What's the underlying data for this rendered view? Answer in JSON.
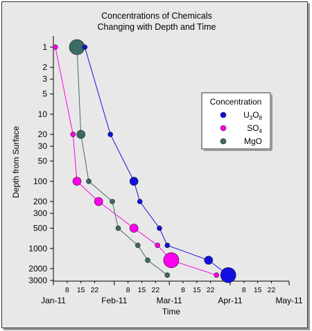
{
  "chart_data": {
    "type": "scatter",
    "title": [
      "Concentrations of Chemicals",
      "Changing with Depth and Time"
    ],
    "xlabel": "Time",
    "ylabel": "Depth from Surface",
    "x_major_ticks": [
      {
        "date": "2011-01-01",
        "label": "Jan-11"
      },
      {
        "date": "2011-02-01",
        "label": "Feb-11"
      },
      {
        "date": "2011-03-01",
        "label": "Mar-11"
      },
      {
        "date": "2011-04-01",
        "label": "Apr-11"
      },
      {
        "date": "2011-05-01",
        "label": "May-11"
      }
    ],
    "x_minor_ticks": [
      {
        "date": "2011-01-08",
        "label": "8"
      },
      {
        "date": "2011-01-15",
        "label": "15"
      },
      {
        "date": "2011-01-22",
        "label": "22"
      },
      {
        "date": "2011-02-08",
        "label": "8"
      },
      {
        "date": "2011-02-15",
        "label": "15"
      },
      {
        "date": "2011-02-22",
        "label": "22"
      },
      {
        "date": "2011-03-08",
        "label": "8"
      },
      {
        "date": "2011-03-15",
        "label": "15"
      },
      {
        "date": "2011-03-22",
        "label": "22"
      },
      {
        "date": "2011-04-08",
        "label": "8"
      },
      {
        "date": "2011-04-15",
        "label": "15"
      },
      {
        "date": "2011-04-22",
        "label": "22"
      }
    ],
    "y_scale": "log",
    "y_inverted": true,
    "ylim": [
      1,
      3000
    ],
    "y_ticks": [
      1,
      2,
      3,
      5,
      10,
      20,
      30,
      50,
      100,
      200,
      300,
      500,
      1000,
      2000,
      3000
    ],
    "grid": false,
    "legend": {
      "title": "Concentration",
      "placement": "right"
    },
    "series": [
      {
        "name": "U3O8",
        "label_main": "U",
        "label_sub1": "3",
        "label_mid": "O",
        "label_sub2": "8",
        "color": "#1010e0",
        "points": [
          {
            "x": "2011-01-17",
            "y": 1,
            "size": 1
          },
          {
            "x": "2011-01-30",
            "y": 20,
            "size": 1
          },
          {
            "x": "2011-02-11",
            "y": 100,
            "size": 2
          },
          {
            "x": "2011-02-14",
            "y": 200,
            "size": 1
          },
          {
            "x": "2011-02-24",
            "y": 500,
            "size": 1
          },
          {
            "x": "2011-02-28",
            "y": 900,
            "size": 1
          },
          {
            "x": "2011-03-21",
            "y": 1500,
            "size": 2
          },
          {
            "x": "2011-03-31",
            "y": 2500,
            "size": 3
          }
        ]
      },
      {
        "name": "SO4",
        "label_main": "SO",
        "label_sub1": "4",
        "color": "#ff00ee",
        "points": [
          {
            "x": "2011-01-02",
            "y": 1,
            "size": 1
          },
          {
            "x": "2011-01-11",
            "y": 20,
            "size": 1
          },
          {
            "x": "2011-01-13",
            "y": 100,
            "size": 2
          },
          {
            "x": "2011-01-24",
            "y": 200,
            "size": 2
          },
          {
            "x": "2011-02-11",
            "y": 500,
            "size": 2
          },
          {
            "x": "2011-02-23",
            "y": 900,
            "size": 1
          },
          {
            "x": "2011-03-02",
            "y": 1500,
            "size": 3
          },
          {
            "x": "2011-03-25",
            "y": 2500,
            "size": 1
          }
        ]
      },
      {
        "name": "MgO",
        "label_main": "MgO",
        "color": "#3c6b66",
        "points": [
          {
            "x": "2011-01-13",
            "y": 1,
            "size": 3
          },
          {
            "x": "2011-01-15",
            "y": 20,
            "size": 2
          },
          {
            "x": "2011-01-19",
            "y": 100,
            "size": 1
          },
          {
            "x": "2011-01-31",
            "y": 200,
            "size": 1
          },
          {
            "x": "2011-02-03",
            "y": 500,
            "size": 1
          },
          {
            "x": "2011-02-13",
            "y": 900,
            "size": 1
          },
          {
            "x": "2011-02-18",
            "y": 1500,
            "size": 1
          },
          {
            "x": "2011-02-28",
            "y": 2500,
            "size": 1
          }
        ]
      }
    ]
  }
}
